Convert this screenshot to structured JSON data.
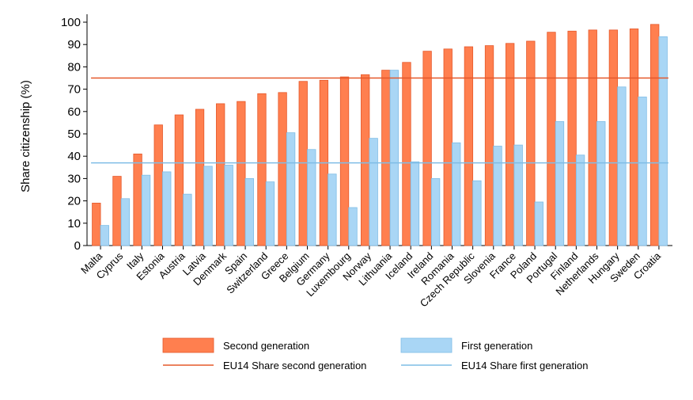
{
  "chart_data": {
    "type": "bar",
    "title": "",
    "xlabel": "",
    "ylabel": "Share citizenship (%)",
    "ylim": [
      0,
      100
    ],
    "yticks": [
      0,
      10,
      20,
      30,
      40,
      50,
      60,
      70,
      80,
      90,
      100
    ],
    "grid": false,
    "legend_position": "bottom",
    "categories": [
      "Malta",
      "Cyprus",
      "Italy",
      "Estonia",
      "Austria",
      "Latvia",
      "Denmark",
      "Spain",
      "Switzerland",
      "Greece",
      "Belgium",
      "Germany",
      "Luxembourg",
      "Norway",
      "Lithuania",
      "Iceland",
      "Ireland",
      "Romania",
      "Czech Republic",
      "Slovenia",
      "France",
      "Poland",
      "Portugal",
      "Finland",
      "Netherlands",
      "Hungary",
      "Sweden",
      "Croatia"
    ],
    "series": [
      {
        "name": "Second generation",
        "color": "#ff7f4f",
        "stroke": "#e5582a",
        "values": [
          19,
          31,
          41,
          54,
          58.5,
          61,
          63.5,
          64.5,
          68,
          68.5,
          73.5,
          74,
          75.5,
          76.5,
          78.5,
          82,
          87,
          88,
          89,
          89.5,
          90.5,
          91.5,
          95.5,
          96,
          96.5,
          96.5,
          97,
          99
        ]
      },
      {
        "name": "First generation",
        "color": "#a9d6f5",
        "stroke": "#7fbde6",
        "values": [
          9,
          21,
          31.5,
          33,
          23,
          35.5,
          36,
          30,
          28.5,
          50.5,
          43,
          32,
          17,
          48,
          78.5,
          37.5,
          30,
          46,
          29,
          44.5,
          45,
          19.5,
          55.5,
          40.5,
          55.5,
          71,
          66.5,
          93.5
        ]
      }
    ],
    "reference_lines": [
      {
        "name": "EU14 Share second generation",
        "value": 75,
        "color": "#e5582a"
      },
      {
        "name": "EU14 Share first generation",
        "value": 37,
        "color": "#7fbde6"
      }
    ]
  }
}
